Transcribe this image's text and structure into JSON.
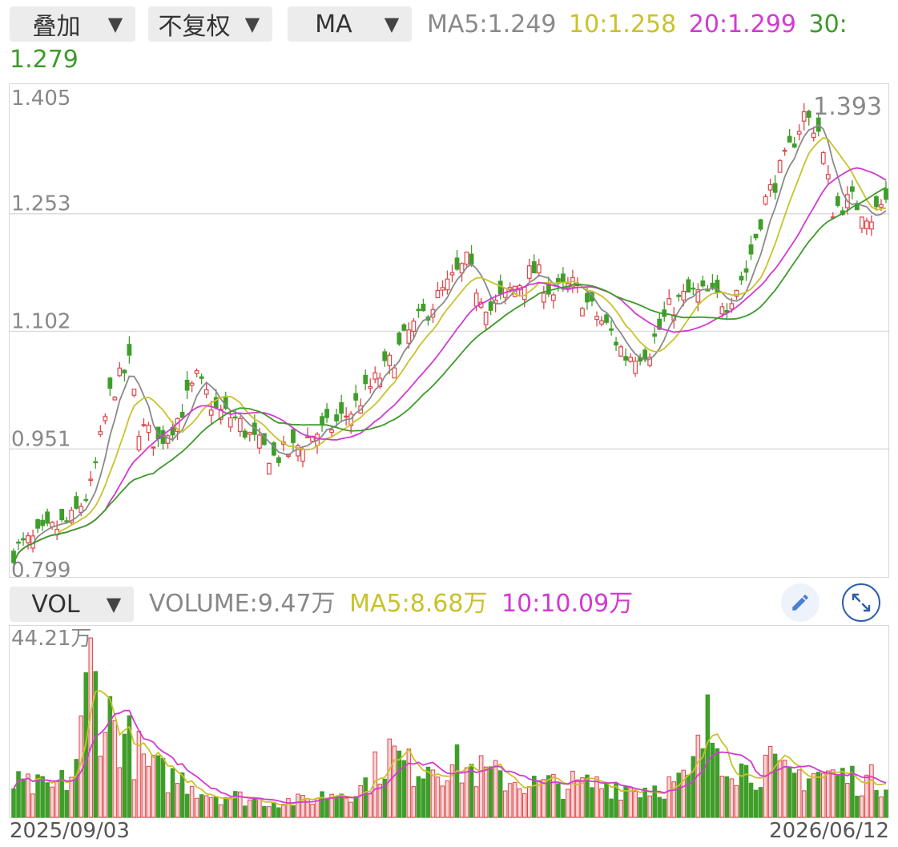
{
  "toolbar": {
    "overlay_label": "叠加",
    "adjust_label": "不复权",
    "indicator_label": "MA",
    "ma5_label": "MA5:",
    "ma5_value": "1.249",
    "ma10_label": "10:",
    "ma10_value": "1.258",
    "ma20_label": "20:",
    "ma20_value": "1.299",
    "ma30_label": "30:",
    "ma30_value": "1.279",
    "dropdown_icon": "triangle-down-icon"
  },
  "volume_toolbar": {
    "indicator_label": "VOL",
    "volume_label": "VOLUME:",
    "volume_value": "9.47万",
    "ma5_label": "MA5:",
    "ma5_value": "8.68万",
    "ma10_label": "10:",
    "ma10_value": "10.09万",
    "edit_icon": "pencil-icon",
    "expand_icon": "expand-arrows-icon"
  },
  "colors": {
    "up": "#e0454b",
    "down": "#3f9e2a",
    "ma5": "#8a8a8a",
    "ma10": "#c9c22a",
    "ma20": "#d23ad2",
    "ma30": "#3d9a2a",
    "grid": "#dddddd"
  },
  "chart_data": [
    {
      "type": "candlestick",
      "y_axis_labels": [
        "1.405",
        "1.253",
        "1.102",
        "0.951",
        "0.799"
      ],
      "ylim": [
        0.799,
        1.405
      ],
      "max_annotation": "1.393",
      "x_start_label": "2025/09/03",
      "x_end_label": "2026/06/12",
      "series": [
        {
          "name": "MA5",
          "last": 1.249
        },
        {
          "name": "10",
          "last": 1.258
        },
        {
          "name": "20",
          "last": 1.299
        },
        {
          "name": "30",
          "last": 1.279
        }
      ],
      "price_path": [
        [
          0,
          0.82
        ],
        [
          6,
          0.84
        ],
        [
          12,
          0.86
        ],
        [
          16,
          0.9
        ],
        [
          20,
          1.02
        ],
        [
          24,
          1.06
        ],
        [
          26,
          0.98
        ],
        [
          30,
          0.96
        ],
        [
          34,
          0.99
        ],
        [
          38,
          1.04
        ],
        [
          42,
          1.0
        ],
        [
          46,
          0.99
        ],
        [
          50,
          0.96
        ],
        [
          54,
          0.94
        ],
        [
          58,
          0.95
        ],
        [
          62,
          0.97
        ],
        [
          66,
          0.98
        ],
        [
          70,
          1.0
        ],
        [
          74,
          1.03
        ],
        [
          78,
          1.06
        ],
        [
          82,
          1.1
        ],
        [
          86,
          1.13
        ],
        [
          90,
          1.16
        ],
        [
          94,
          1.19
        ],
        [
          96,
          1.16
        ],
        [
          99,
          1.13
        ],
        [
          104,
          1.16
        ],
        [
          108,
          1.18
        ],
        [
          112,
          1.15
        ],
        [
          116,
          1.16
        ],
        [
          120,
          1.13
        ],
        [
          124,
          1.1
        ],
        [
          127,
          1.07
        ],
        [
          132,
          1.08
        ],
        [
          136,
          1.13
        ],
        [
          140,
          1.15
        ],
        [
          144,
          1.15
        ],
        [
          148,
          1.14
        ],
        [
          152,
          1.18
        ],
        [
          156,
          1.27
        ],
        [
          160,
          1.32
        ],
        [
          164,
          1.38
        ],
        [
          167,
          1.36
        ],
        [
          170,
          1.26
        ],
        [
          174,
          1.27
        ],
        [
          178,
          1.25
        ],
        [
          181,
          1.27
        ]
      ]
    },
    {
      "type": "bar",
      "name": "VOL",
      "y_axis_labels": [
        "44.21万"
      ],
      "ylim": [
        0,
        44.21
      ],
      "unit": "万",
      "series": [
        {
          "name": "VOLUME",
          "last": 9.47
        },
        {
          "name": "MA5",
          "last": 8.68
        },
        {
          "name": "10",
          "last": 10.09
        }
      ],
      "volume_path": [
        [
          0,
          8
        ],
        [
          8,
          7
        ],
        [
          12,
          10
        ],
        [
          14,
          20
        ],
        [
          16,
          38
        ],
        [
          18,
          27
        ],
        [
          20,
          24
        ],
        [
          24,
          18
        ],
        [
          28,
          12
        ],
        [
          32,
          10
        ],
        [
          36,
          9
        ],
        [
          40,
          6
        ],
        [
          46,
          5
        ],
        [
          52,
          4
        ],
        [
          60,
          4
        ],
        [
          66,
          6
        ],
        [
          72,
          7
        ],
        [
          78,
          16
        ],
        [
          82,
          12
        ],
        [
          86,
          14
        ],
        [
          90,
          13
        ],
        [
          94,
          12
        ],
        [
          100,
          10
        ],
        [
          108,
          8
        ],
        [
          116,
          8
        ],
        [
          124,
          8
        ],
        [
          130,
          7
        ],
        [
          136,
          8
        ],
        [
          140,
          9
        ],
        [
          144,
          22
        ],
        [
          148,
          16
        ],
        [
          152,
          11
        ],
        [
          156,
          13
        ],
        [
          160,
          10
        ],
        [
          166,
          11
        ],
        [
          172,
          10
        ],
        [
          176,
          9
        ],
        [
          181,
          9
        ]
      ]
    }
  ]
}
